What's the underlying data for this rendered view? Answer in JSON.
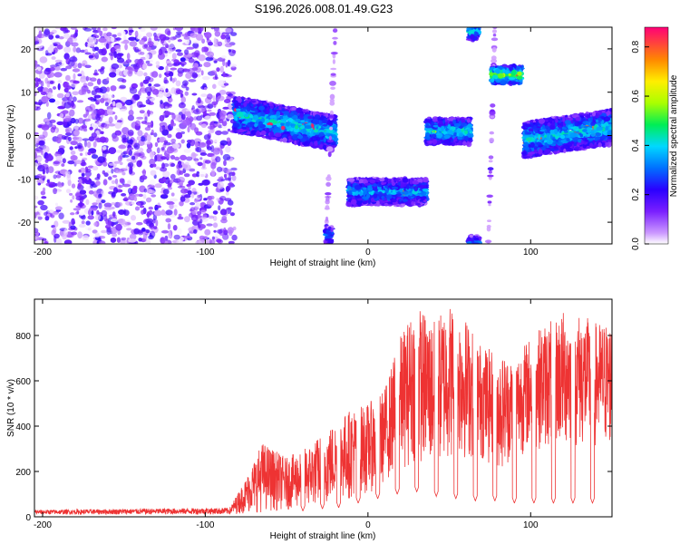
{
  "figure": {
    "title": "S196.2026.008.01.49.G23"
  },
  "chart_data": [
    {
      "type": "heatmap",
      "name": "spectrogram",
      "xlabel": "Height of straight line (km)",
      "ylabel": "Frequency (Hz)",
      "xlim": [
        -205,
        150
      ],
      "ylim": [
        -25,
        25
      ],
      "xticks": [
        -200,
        -100,
        0,
        100
      ],
      "xtick_labels": [
        "-200",
        "-100",
        "0",
        "100"
      ],
      "yticks": [
        -20,
        -10,
        0,
        10,
        20
      ],
      "ytick_labels": [
        "-20",
        "-10",
        "0",
        "10",
        "20"
      ],
      "colorbar": {
        "label": "Normalized spectral amplitude",
        "range": [
          0,
          0.88
        ],
        "ticks": [
          0,
          0.2,
          0.4,
          0.6,
          0.8
        ],
        "tick_labels": [
          "0.0",
          "0.2",
          "0.4",
          "0.6",
          "0.8"
        ],
        "colormap": "rainbow"
      },
      "noise_region": {
        "x": [
          -205,
          -82
        ],
        "y": [
          -25,
          25
        ],
        "level": 0.08
      },
      "bands": [
        {
          "x": [
            -82,
            -20
          ],
          "y_start": 5,
          "y_end": 0.5,
          "width": 4,
          "level": 0.4,
          "peak": 0.85
        },
        {
          "x": [
            -26,
            -20
          ],
          "y_start": -25,
          "y_end": 25,
          "width": 1,
          "level": 0.08,
          "peak": 0.2
        },
        {
          "x": [
            -26,
            -22
          ],
          "y_start": -23,
          "y_end": -23,
          "width": 2,
          "level": 0.3,
          "peak": 0.4
        },
        {
          "x": [
            -12,
            36
          ],
          "y_start": -13,
          "y_end": -13,
          "width": 3,
          "level": 0.35,
          "peak": 0.75
        },
        {
          "x": [
            36,
            63
          ],
          "y_start": 1,
          "y_end": 1,
          "width": 3,
          "level": 0.4,
          "peak": 0.6
        },
        {
          "x": [
            62,
            68
          ],
          "y_start": 24,
          "y_end": 24,
          "width": 2,
          "level": 0.4,
          "peak": 0.6
        },
        {
          "x": [
            62,
            69
          ],
          "y_start": -25,
          "y_end": -25,
          "width": 2,
          "level": 0.3,
          "peak": 0.5
        },
        {
          "x": [
            74,
            78
          ],
          "y_start": -25,
          "y_end": 25,
          "width": 1,
          "level": 0.08,
          "peak": 0.2
        },
        {
          "x": [
            76,
            95
          ],
          "y_start": 14,
          "y_end": 14,
          "width": 2,
          "level": 0.55,
          "peak": 0.85
        },
        {
          "x": [
            96,
            150
          ],
          "y_start": -1,
          "y_end": 2,
          "width": 4,
          "level": 0.4,
          "peak": 0.8
        }
      ]
    },
    {
      "type": "line",
      "name": "snr",
      "xlabel": "Height of straight line (km)",
      "ylabel": "SNR (10 * v/v)",
      "xlim": [
        -205,
        150
      ],
      "ylim": [
        0,
        960
      ],
      "xticks": [
        -200,
        -100,
        0,
        100
      ],
      "xtick_labels": [
        "-200",
        "-100",
        "0",
        "100"
      ],
      "yticks": [
        0,
        200,
        400,
        600,
        800
      ],
      "ytick_labels": [
        "0",
        "200",
        "400",
        "600",
        "800"
      ],
      "color": "#ee3333",
      "envelope": [
        {
          "x": -205,
          "low": 10,
          "high": 30
        },
        {
          "x": -85,
          "low": 10,
          "high": 40
        },
        {
          "x": -75,
          "low": 15,
          "high": 170
        },
        {
          "x": -65,
          "low": 20,
          "high": 330
        },
        {
          "x": -50,
          "low": 30,
          "high": 260
        },
        {
          "x": -35,
          "low": 40,
          "high": 320
        },
        {
          "x": -20,
          "low": 60,
          "high": 420
        },
        {
          "x": -10,
          "low": 80,
          "high": 480
        },
        {
          "x": 0,
          "low": 100,
          "high": 500
        },
        {
          "x": 10,
          "low": 150,
          "high": 560
        },
        {
          "x": 20,
          "low": 200,
          "high": 800
        },
        {
          "x": 30,
          "low": 250,
          "high": 940
        },
        {
          "x": 40,
          "low": 200,
          "high": 860
        },
        {
          "x": 50,
          "low": 250,
          "high": 950
        },
        {
          "x": 60,
          "low": 250,
          "high": 880
        },
        {
          "x": 70,
          "low": 250,
          "high": 760
        },
        {
          "x": 80,
          "low": 200,
          "high": 720
        },
        {
          "x": 90,
          "low": 250,
          "high": 700
        },
        {
          "x": 100,
          "low": 300,
          "high": 800
        },
        {
          "x": 110,
          "low": 300,
          "high": 860
        },
        {
          "x": 120,
          "low": 300,
          "high": 910
        },
        {
          "x": 130,
          "low": 300,
          "high": 900
        },
        {
          "x": 140,
          "low": 300,
          "high": 860
        },
        {
          "x": 150,
          "low": 300,
          "high": 860
        }
      ],
      "dips": [
        {
          "x": -40,
          "value": 25
        },
        {
          "x": -28,
          "value": 35
        },
        {
          "x": -18,
          "value": 40
        },
        {
          "x": -6,
          "value": 60
        },
        {
          "x": 6,
          "value": 80
        },
        {
          "x": 18,
          "value": 100
        },
        {
          "x": 30,
          "value": 110
        },
        {
          "x": 42,
          "value": 90
        },
        {
          "x": 54,
          "value": 80
        },
        {
          "x": 66,
          "value": 70
        },
        {
          "x": 78,
          "value": 70
        },
        {
          "x": 90,
          "value": 60
        },
        {
          "x": 102,
          "value": 60
        },
        {
          "x": 114,
          "value": 60
        },
        {
          "x": 126,
          "value": 60
        },
        {
          "x": 138,
          "value": 60
        }
      ]
    }
  ]
}
